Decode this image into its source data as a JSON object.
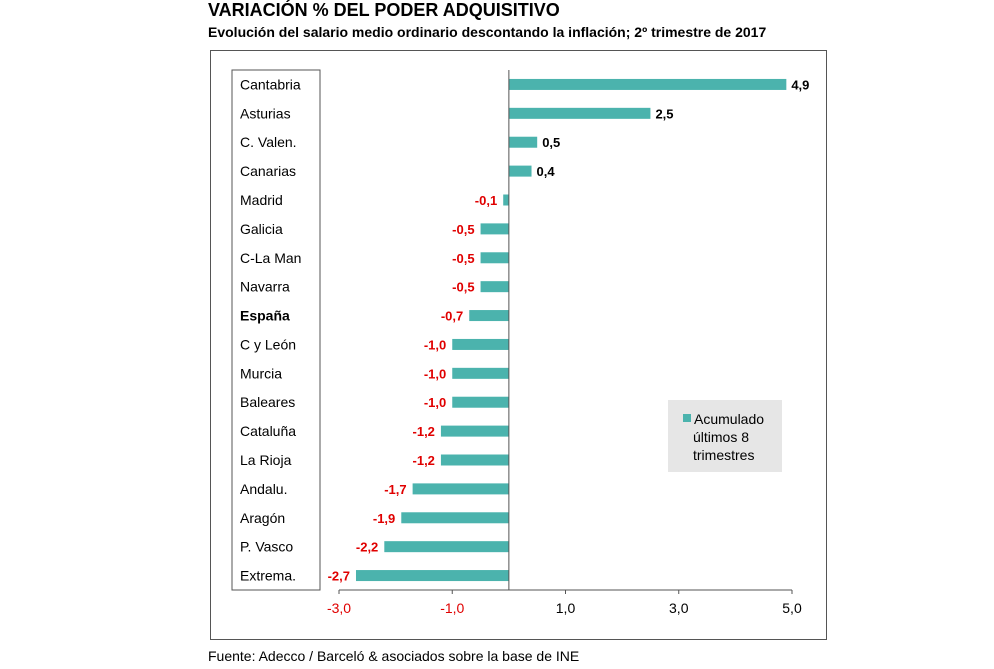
{
  "title": "VARIACIÓN % DEL PODER ADQUISITIVO",
  "subtitle": "Evolución del salario medio ordinario descontando la inflación; 2º trimestre de 2017",
  "source": "Fuente: Adecco / Barceló & asociados sobre la base de INE",
  "colors": {
    "bar": "#4bb3ad",
    "negative_label": "#e00000",
    "positive_label": "#000000",
    "legend_bg": "#e6e6e6"
  },
  "chart_data": {
    "type": "bar",
    "orientation": "horizontal",
    "categories": [
      "Cantabria",
      "Asturias",
      "C. Valen.",
      "Canarias",
      "Madrid",
      "Galicia",
      "C-La Man",
      "Navarra",
      "España",
      "C y León",
      "Murcia",
      "Baleares",
      "Cataluña",
      "La Rioja",
      "Andalu.",
      "Aragón",
      "P. Vasco",
      "Extrema."
    ],
    "value_labels": [
      "4,9",
      "2,5",
      "0,5",
      "0,4",
      "-0,1",
      "-0,5",
      "-0,5",
      "-0,5",
      "-0,7",
      "-1,0",
      "-1,0",
      "-1,0",
      "-1,2",
      "-1,2",
      "-1,7",
      "-1,9",
      "-2,2",
      "-2,7"
    ],
    "series": [
      {
        "name": "Acumulado últimos 8 trimestres",
        "values": [
          4.9,
          2.5,
          0.5,
          0.4,
          -0.1,
          -0.5,
          -0.5,
          -0.5,
          -0.7,
          -1.0,
          -1.0,
          -1.0,
          -1.2,
          -1.2,
          -1.7,
          -1.9,
          -2.2,
          -2.7
        ]
      }
    ],
    "bold_categories": [
      "España"
    ],
    "xlim": [
      -3.0,
      5.0
    ],
    "xticks": [
      "-3,0",
      "-1,0",
      "1,0",
      "3,0",
      "5,0"
    ],
    "xtick_values": [
      -3.0,
      -1.0,
      1.0,
      3.0,
      5.0
    ],
    "legend": {
      "position": "bottom-right",
      "lines": [
        "Acumulado",
        "últimos 8",
        "trimestres"
      ]
    },
    "grid": false
  }
}
